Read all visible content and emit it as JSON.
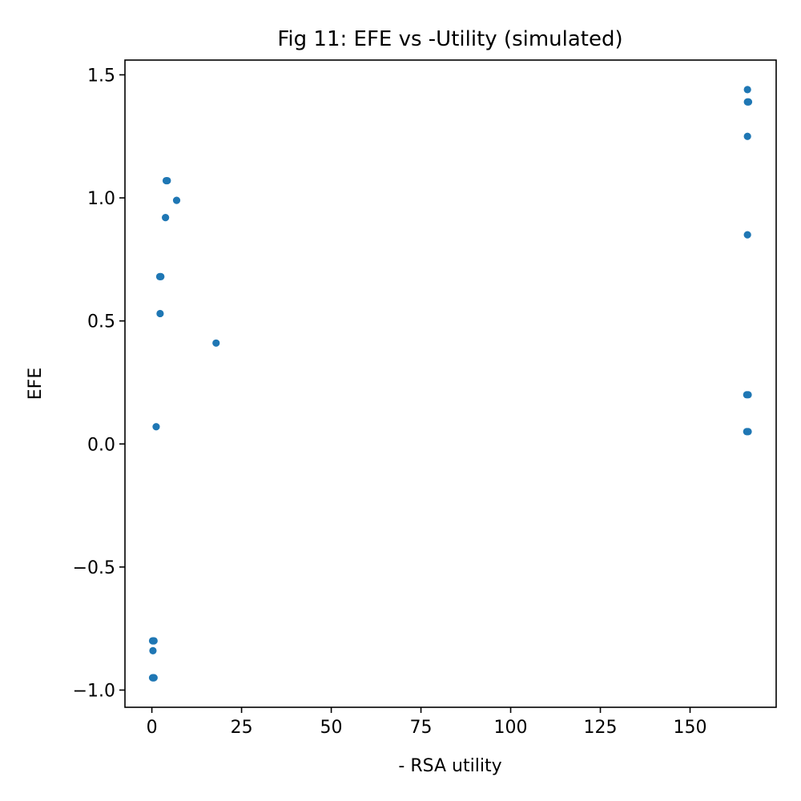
{
  "chart_data": {
    "type": "scatter",
    "title": "Fig 11: EFE vs -Utility (simulated)",
    "xlabel": "- RSA utility",
    "ylabel": "EFE",
    "xlim": [
      -7.5,
      174
    ],
    "ylim": [
      -1.07,
      1.56
    ],
    "grid": false,
    "point_color": "#1f77b4",
    "x_ticks": [
      0,
      25,
      50,
      75,
      100,
      125,
      150
    ],
    "x_tick_labels": [
      "0",
      "25",
      "50",
      "75",
      "100",
      "125",
      "150"
    ],
    "y_ticks": [
      -1.0,
      -0.5,
      0.0,
      0.5,
      1.0,
      1.5
    ],
    "y_tick_labels": [
      "−1.0",
      "−0.5",
      "0.0",
      "0.5",
      "1.0",
      "1.5"
    ],
    "points": [
      {
        "x": 0.2,
        "y": -0.8
      },
      {
        "x": 0.4,
        "y": -0.8
      },
      {
        "x": 0.6,
        "y": -0.8
      },
      {
        "x": 0.3,
        "y": -0.84
      },
      {
        "x": 0.2,
        "y": -0.95
      },
      {
        "x": 0.4,
        "y": -0.95
      },
      {
        "x": 0.6,
        "y": -0.95
      },
      {
        "x": 1.2,
        "y": 0.07
      },
      {
        "x": 2.3,
        "y": 0.53
      },
      {
        "x": 2.2,
        "y": 0.68
      },
      {
        "x": 2.5,
        "y": 0.68
      },
      {
        "x": 3.8,
        "y": 0.92
      },
      {
        "x": 4.0,
        "y": 1.07
      },
      {
        "x": 4.3,
        "y": 1.07
      },
      {
        "x": 6.9,
        "y": 0.99
      },
      {
        "x": 17.9,
        "y": 0.41
      },
      {
        "x": 166.0,
        "y": 1.44
      },
      {
        "x": 166.0,
        "y": 1.39
      },
      {
        "x": 166.3,
        "y": 1.39
      },
      {
        "x": 166.0,
        "y": 1.25
      },
      {
        "x": 166.0,
        "y": 0.85
      },
      {
        "x": 165.8,
        "y": 0.2
      },
      {
        "x": 166.2,
        "y": 0.2
      },
      {
        "x": 165.8,
        "y": 0.05
      },
      {
        "x": 166.2,
        "y": 0.05
      }
    ]
  }
}
